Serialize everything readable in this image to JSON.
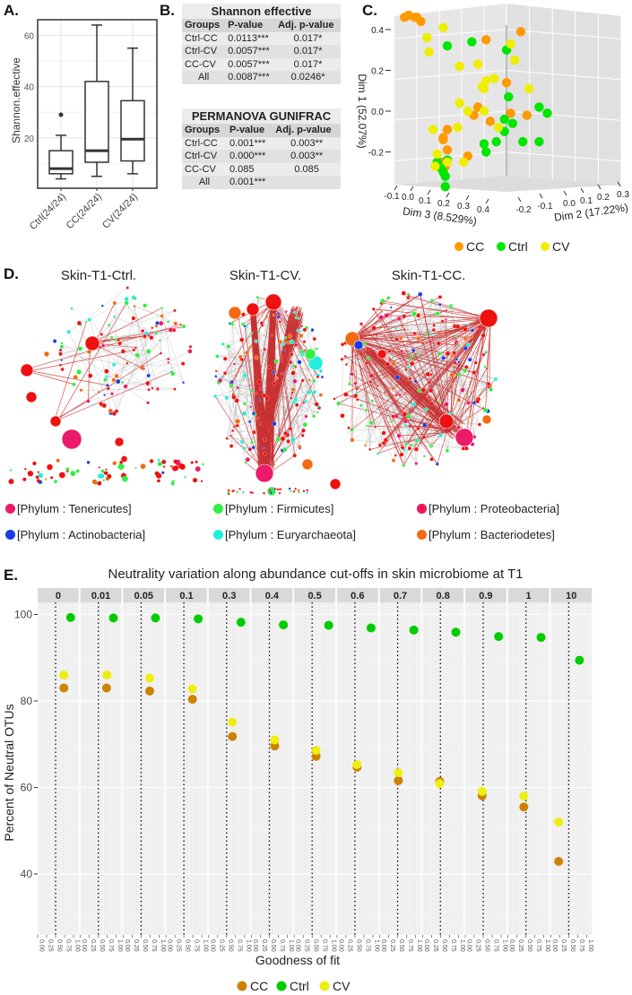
{
  "panel_labels": {
    "a": "A.",
    "b": "B.",
    "c": "C.",
    "d": "D.",
    "e": "E."
  },
  "colors": {
    "cc_c": "#ff9900",
    "ctrl_c": "#00e600",
    "cv_c": "#eeee00",
    "cc_e": "#cc8400",
    "ctrl_e": "#00cc00",
    "cv_e": "#eeee11"
  },
  "chart_data": [
    {
      "type": "boxplot",
      "ylabel": "Shannon.effective",
      "yticks": [
        20,
        40,
        60
      ],
      "ylim": [
        0,
        66
      ],
      "categories": [
        "Ctrl(24/24)",
        "CC(24/24)",
        "CV(24/24)"
      ],
      "boxes": [
        {
          "min": 4,
          "q1": 6,
          "median": 8,
          "q3": 15,
          "max": 21,
          "outliers": [
            29
          ]
        },
        {
          "min": 5,
          "q1": 10.5,
          "median": 15,
          "q3": 42,
          "max": 64,
          "outliers": []
        },
        {
          "min": 6,
          "q1": 11,
          "median": 19.5,
          "q3": 34.5,
          "max": 55,
          "outliers": []
        }
      ]
    },
    {
      "type": "table",
      "tables": [
        {
          "title": "Shannon effective",
          "headers": [
            "Groups",
            "P-value",
            "Adj. p-value"
          ],
          "rows": [
            [
              "Ctrl-CC",
              "0.0113***",
              "0.017*"
            ],
            [
              "Ctrl-CV",
              "0.0057***",
              "0.017*"
            ],
            [
              "CC-CV",
              "0.0057***",
              "0.017*"
            ],
            [
              "All",
              "0.0087***",
              "0.0246*"
            ]
          ]
        },
        {
          "title": "PERMANOVA GUNIFRAC",
          "headers": [
            "Groups",
            "P-value",
            "Adj. p-value"
          ],
          "rows": [
            [
              "Ctrl-CC",
              "0.001***",
              "0.003**"
            ],
            [
              "Ctrl-CV",
              "0.000***",
              "0.003**"
            ],
            [
              "CC-CV",
              "0.085",
              "0.085"
            ],
            [
              "All",
              "0.001***",
              ""
            ]
          ]
        }
      ]
    },
    {
      "type": "scatter3d",
      "ylabel": "Dim 1 (52.07%)",
      "xlabel_left": "Dim 3 (8.529%)",
      "xlabel_right": "Dim 2 (17.22%)",
      "dim1_ticks": [
        "0.4",
        "0.2",
        "0.0",
        "-0.2"
      ],
      "dim3_ticks": [
        "-0.1",
        "0.0",
        "0.1",
        "0.2",
        "0.3",
        "0.4"
      ],
      "dim2_ticks": [
        "-0.2",
        "-0.1",
        "0.0",
        "0.1",
        "0.2",
        "0.3"
      ],
      "legend": [
        "CC",
        "Ctrl",
        "CV"
      ],
      "note": "points given as [projected horizontal, Dim 1]",
      "series": [
        {
          "name": "CC",
          "points": [
            [
              -0.5,
              0.46
            ],
            [
              -0.48,
              0.47
            ],
            [
              -0.45,
              0.46
            ],
            [
              -0.42,
              0.44
            ],
            [
              -0.44,
              0.46
            ],
            [
              0.07,
              0.39
            ],
            [
              -0.1,
              0.35
            ],
            [
              0.0,
              0.14
            ],
            [
              -0.14,
              0.02
            ],
            [
              -0.16,
              -0.02
            ],
            [
              0.02,
              -0.01
            ],
            [
              0.1,
              -0.02
            ],
            [
              -0.08,
              -0.05
            ],
            [
              -0.29,
              -0.09
            ],
            [
              -0.31,
              -0.13
            ],
            [
              -0.31,
              -0.14
            ],
            [
              -0.29,
              -0.19
            ],
            [
              -0.19,
              -0.22
            ],
            [
              -0.3,
              -0.27
            ],
            [
              -0.32,
              -0.25
            ]
          ]
        },
        {
          "name": "Ctrl",
          "points": [
            [
              -0.29,
              0.32
            ],
            [
              -0.17,
              0.34
            ],
            [
              0.0,
              0.3
            ],
            [
              0.01,
              0.07
            ],
            [
              0.16,
              0.02
            ],
            [
              0.2,
              -0.01
            ],
            [
              -0.01,
              -0.04
            ],
            [
              0.03,
              -0.06
            ],
            [
              -0.01,
              -0.1
            ],
            [
              -0.11,
              -0.16
            ],
            [
              -0.05,
              -0.15
            ],
            [
              0.08,
              -0.15
            ],
            [
              0.16,
              -0.15
            ],
            [
              -0.1,
              -0.2
            ],
            [
              -0.29,
              -0.24
            ],
            [
              -0.34,
              -0.25
            ],
            [
              -0.32,
              -0.28
            ],
            [
              -0.3,
              -0.32
            ],
            [
              -0.3,
              -0.37
            ],
            [
              -0.31,
              -0.3
            ]
          ]
        },
        {
          "name": "CV",
          "points": [
            [
              -0.31,
              0.41
            ],
            [
              -0.39,
              0.36
            ],
            [
              -0.38,
              0.29
            ],
            [
              0.02,
              0.33
            ],
            [
              0.04,
              0.25
            ],
            [
              -0.23,
              0.22
            ],
            [
              -0.14,
              0.23
            ],
            [
              -0.1,
              0.15
            ],
            [
              -0.06,
              0.16
            ],
            [
              -0.12,
              0.12
            ],
            [
              -0.11,
              0.11
            ],
            [
              0.11,
              0.11
            ],
            [
              -0.23,
              0.04
            ],
            [
              -0.19,
              0.0
            ],
            [
              -0.11,
              0.0
            ],
            [
              -0.24,
              -0.08
            ],
            [
              -0.04,
              -0.08
            ],
            [
              -0.36,
              -0.09
            ],
            [
              -0.21,
              -0.25
            ],
            [
              -0.34,
              -0.21
            ],
            [
              -0.35,
              -0.27
            ],
            [
              -0.29,
              -0.25
            ]
          ]
        }
      ]
    },
    {
      "type": "network",
      "titles": [
        "Skin-T1-Ctrl.",
        "Skin-T1-CV.",
        "Skin-T1-CC."
      ],
      "legend": [
        {
          "label": "[Phylum : Tenericutes]",
          "color": "#ec1a6a"
        },
        {
          "label": "[Phylum : Firmicutes]",
          "color": "#33ee44"
        },
        {
          "label": "[Phylum : Proteobacteria]",
          "color": "#ee1133"
        },
        {
          "label": "[Phylum : Actinobacteria]",
          "color": "#1a3ce8"
        },
        {
          "label": "[Phylum : Euryarchaeota]",
          "color": "#22eedd"
        },
        {
          "label": "[Phylum : Bacteriodetes]",
          "color": "#f26a12"
        }
      ]
    },
    {
      "type": "scatter",
      "title": "Neutrality variation along abundance cut-offs in skin microbiome at T1",
      "xlabel": "Goodness of fit",
      "ylabel": "Percent of Neutral OTUs",
      "ylim": [
        26,
        103
      ],
      "yticks": [
        40,
        60,
        80,
        100
      ],
      "xticks": [
        "0.00",
        "0.25",
        "0.50",
        "0.75",
        "1.00"
      ],
      "xlim": [
        0,
        1
      ],
      "reference_line_x": 0.5,
      "facets": [
        "0",
        "0.01",
        "0.05",
        "0.1",
        "0.3",
        "0.4",
        "0.5",
        "0.6",
        "0.7",
        "0.8",
        "0.9",
        "1",
        "10"
      ],
      "legend": [
        "CC",
        "Ctrl",
        "CV"
      ],
      "series": [
        {
          "name": "CC",
          "x": [
            0.73,
            0.73,
            0.74,
            0.74,
            0.66,
            0.65,
            0.61,
            0.56,
            0.52,
            0.48,
            0.47,
            0.44,
            0.22
          ],
          "y": [
            83.0,
            83.0,
            82.3,
            80.4,
            71.8,
            69.6,
            67.2,
            64.7,
            61.6,
            61.4,
            58.1,
            55.5,
            42.9
          ]
        },
        {
          "name": "Ctrl",
          "x": [
            0.92,
            0.92,
            0.9,
            0.9,
            0.9,
            0.89,
            0.96,
            0.95,
            0.95,
            0.93,
            0.93,
            0.92,
            0.8
          ],
          "y": [
            99.3,
            99.2,
            99.2,
            99.0,
            98.2,
            97.6,
            97.5,
            96.9,
            96.4,
            95.9,
            94.9,
            94.7,
            89.4
          ]
        },
        {
          "name": "CV",
          "x": [
            0.73,
            0.74,
            0.74,
            0.74,
            0.66,
            0.65,
            0.61,
            0.56,
            0.52,
            0.48,
            0.47,
            0.44,
            0.22
          ],
          "y": [
            86.0,
            86.0,
            85.3,
            82.8,
            75.1,
            71.0,
            68.6,
            65.3,
            63.4,
            60.9,
            59.1,
            58.0,
            52.0
          ]
        }
      ]
    }
  ]
}
